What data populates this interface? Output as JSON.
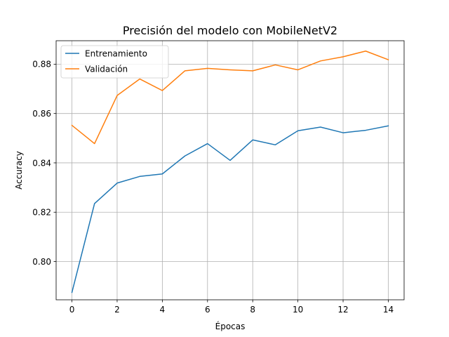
{
  "chart_data": {
    "type": "line",
    "title": "Precisión del modelo con MobileNetV2",
    "xlabel": "Épocas",
    "ylabel": "Accuracy",
    "x": [
      0,
      1,
      2,
      3,
      4,
      5,
      6,
      7,
      8,
      9,
      10,
      11,
      12,
      13,
      14
    ],
    "xlim": [
      -0.7,
      14.7
    ],
    "ylim": [
      0.7845,
      0.8895
    ],
    "xticks": [
      0,
      2,
      4,
      6,
      8,
      10,
      12,
      14
    ],
    "yticks": [
      0.8,
      0.82,
      0.84,
      0.86,
      0.88
    ],
    "xtick_labels": [
      "0",
      "2",
      "4",
      "6",
      "8",
      "10",
      "12",
      "14"
    ],
    "ytick_labels": [
      "0.80",
      "0.82",
      "0.84",
      "0.86",
      "0.88"
    ],
    "grid": true,
    "legend": "top-left",
    "series": [
      {
        "name": "Entrenamiento",
        "color": "#1f77b4",
        "values": [
          0.7875,
          0.8235,
          0.8318,
          0.8345,
          0.8355,
          0.8428,
          0.8478,
          0.841,
          0.8493,
          0.8473,
          0.853,
          0.8545,
          0.8522,
          0.8532,
          0.855
        ]
      },
      {
        "name": "Validación",
        "color": "#ff7f0e",
        "values": [
          0.8552,
          0.8478,
          0.8673,
          0.874,
          0.8693,
          0.8773,
          0.8783,
          0.8777,
          0.8773,
          0.8797,
          0.8777,
          0.8813,
          0.883,
          0.8853,
          0.8818
        ]
      }
    ]
  }
}
